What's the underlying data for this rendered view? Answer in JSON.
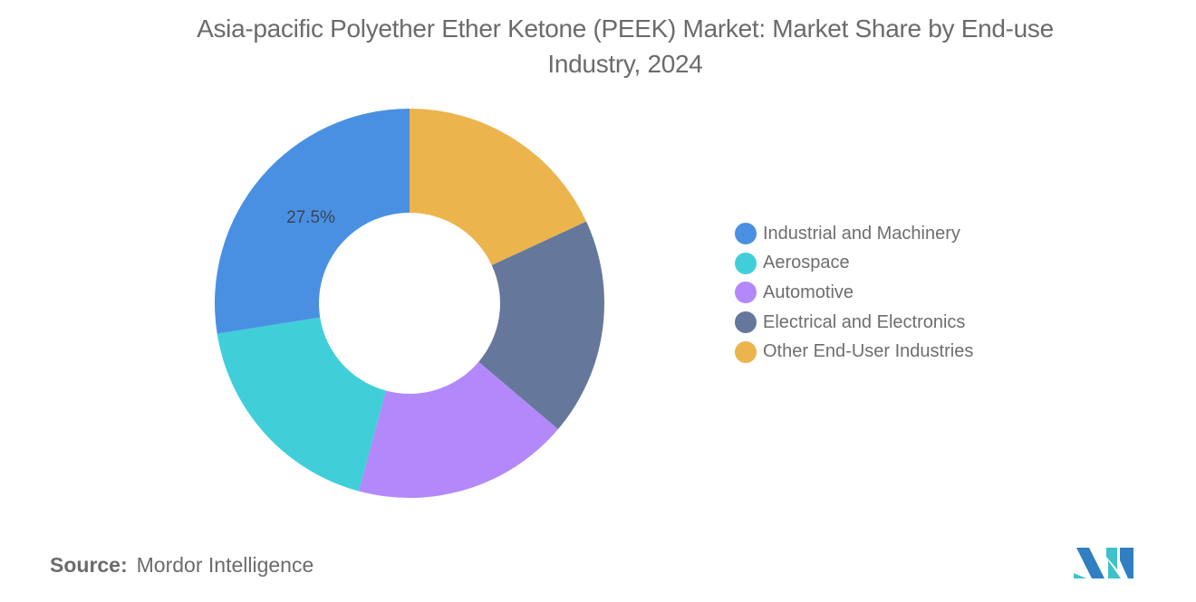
{
  "title": {
    "line1": "Asia-pacific Polyether Ether Ketone (PEEK) Market: Market Share by End-use",
    "line2": "Industry, 2024"
  },
  "chart_data": {
    "type": "pie",
    "variant": "donut",
    "title": "Asia-pacific Polyether Ether Ketone (PEEK) Market: Market Share by End-use Industry, 2024",
    "categories": [
      "Industrial and Machinery",
      "Aerospace",
      "Automotive",
      "Electrical and Electronics",
      "Other End-User Industries"
    ],
    "values": [
      27.5,
      18.3,
      18.0,
      18.1,
      18.1
    ],
    "colors": [
      "#4a90e2",
      "#40cfd9",
      "#b388fb",
      "#65789b",
      "#ebb44d"
    ],
    "labels_shown": [
      {
        "category": "Industrial and Machinery",
        "text": "27.5%"
      }
    ],
    "start_angle_deg": 0,
    "direction": "counterclockwise-from-top for first series (Industrial ends at 12 o'clock)",
    "legend_position": "right",
    "unit": "%"
  },
  "legend": {
    "items": [
      {
        "label": "Industrial and Machinery",
        "color": "#4a90e2"
      },
      {
        "label": "Aerospace",
        "color": "#40cfd9"
      },
      {
        "label": "Automotive",
        "color": "#b388fb"
      },
      {
        "label": "Electrical and Electronics",
        "color": "#65789b"
      },
      {
        "label": "Other End-User Industries",
        "color": "#ebb44d"
      }
    ]
  },
  "slice_label": {
    "text": "27.5%"
  },
  "source": {
    "key": "Source:",
    "value": "Mordor Intelligence"
  },
  "logo": {
    "name": "Mordor Intelligence logo",
    "color_teal": "#3fc1c9",
    "color_blue": "#2f7fc1"
  }
}
